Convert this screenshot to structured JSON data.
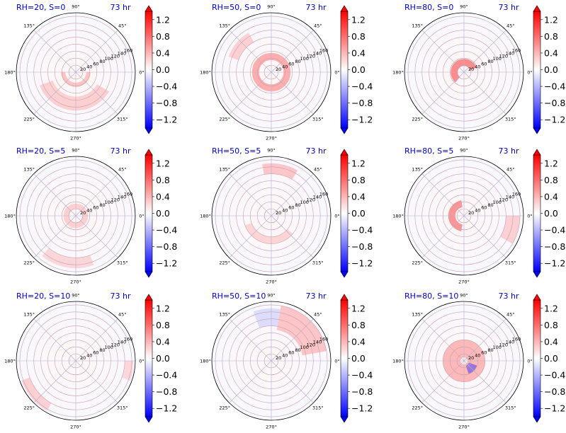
{
  "chart_data": {
    "type": "heatmap",
    "projection": "polar",
    "layout": "3x3 grid",
    "colormap": "bwr",
    "colors": {
      "title": "#0000cc",
      "negative": "#0000ff",
      "zero": "#ffffff",
      "positive": "#ff0000"
    },
    "radial_ticks": [
      "20",
      "40",
      "60",
      "80",
      "100",
      "120",
      "140",
      "160"
    ],
    "angle_ticks": [
      "0°",
      "45°",
      "90°",
      "135°",
      "180°",
      "225°",
      "270°",
      "315°"
    ],
    "colorbar_ticks": [
      "1.2",
      "0.8",
      "0.4",
      "0.0",
      "-0.4",
      "-0.8",
      "-1.2"
    ],
    "colorbar_range": [
      -1.4,
      1.4
    ],
    "panels": [
      {
        "title": "RH=20, S=0",
        "time": "73 hr"
      },
      {
        "title": "RH=50, S=0",
        "time": "73 hr"
      },
      {
        "title": "RH=80, S=0",
        "time": "73 hr"
      },
      {
        "title": "RH=20, S=5",
        "time": "73 hr"
      },
      {
        "title": "RH=50, S=5",
        "time": "73 hr"
      },
      {
        "title": "RH=80, S=5",
        "time": "73 hr"
      },
      {
        "title": "RH=20, S=10",
        "time": "73 hr"
      },
      {
        "title": "RH=50, S=10",
        "time": "73 hr"
      },
      {
        "title": "RH=80, S=10",
        "time": "73 hr"
      }
    ]
  }
}
